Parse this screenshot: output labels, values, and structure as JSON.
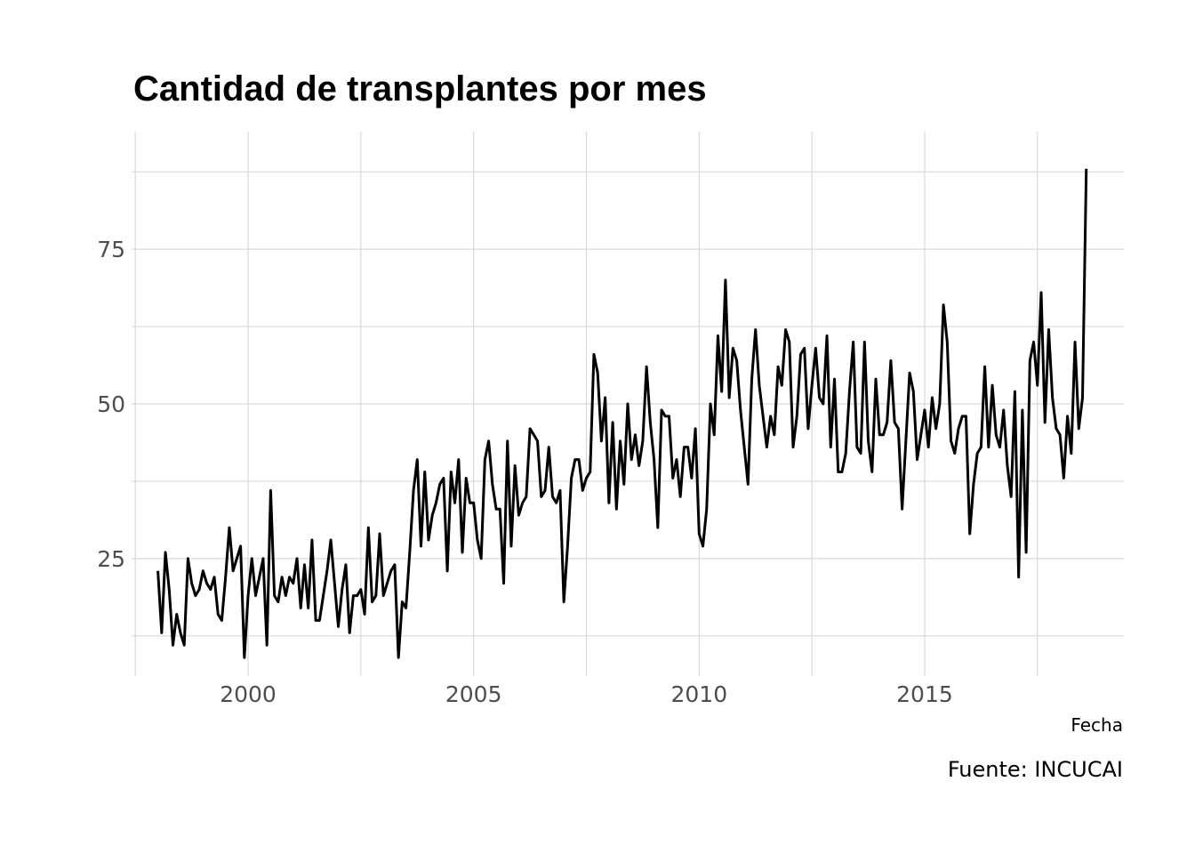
{
  "chart_data": {
    "type": "line",
    "title": "Cantidad de transplantes por mes",
    "xlabel": "Fecha",
    "ylabel": "",
    "caption": "Fuente: INCUCAI",
    "xlim": [
      "1997-06",
      "2019-06"
    ],
    "ylim": [
      6,
      94
    ],
    "x_ticks": [
      2000,
      2005,
      2010,
      2015
    ],
    "x_tick_labels": [
      "2000",
      "2005",
      "2010",
      "2015"
    ],
    "y_ticks": [
      25,
      50,
      75
    ],
    "y_tick_labels": [
      "25",
      "50",
      "75"
    ],
    "grid": true,
    "series_color": "#000000",
    "x_start": "1998-01",
    "x_step": "1 month",
    "values": [
      23,
      13,
      26,
      20,
      11,
      16,
      13,
      11,
      25,
      21,
      19,
      20,
      23,
      21,
      20,
      22,
      16,
      15,
      22,
      30,
      23,
      25,
      27,
      9,
      19,
      25,
      19,
      22,
      25,
      11,
      36,
      19,
      18,
      22,
      19,
      22,
      21,
      25,
      17,
      24,
      17,
      28,
      15,
      15,
      19,
      23,
      28,
      21,
      14,
      20,
      24,
      13,
      19,
      19,
      20,
      16,
      30,
      18,
      19,
      29,
      19,
      21,
      23,
      24,
      9,
      18,
      17,
      26,
      36,
      41,
      27,
      39,
      28,
      32,
      34,
      37,
      38,
      23,
      39,
      34,
      41,
      26,
      38,
      34,
      34,
      28,
      25,
      41,
      44,
      37,
      33,
      33,
      21,
      44,
      27,
      40,
      32,
      34,
      35,
      46,
      45,
      44,
      35,
      36,
      43,
      35,
      34,
      36,
      18,
      27,
      38,
      41,
      41,
      36,
      38,
      39,
      58,
      55,
      44,
      51,
      34,
      47,
      33,
      44,
      37,
      50,
      41,
      45,
      40,
      44,
      56,
      47,
      41,
      30,
      49,
      48,
      48,
      38,
      41,
      35,
      43,
      43,
      38,
      46,
      29,
      27,
      33,
      50,
      45,
      61,
      52,
      70,
      51,
      59,
      57,
      49,
      43,
      37,
      54,
      62,
      53,
      48,
      43,
      48,
      45,
      56,
      53,
      62,
      60,
      43,
      48,
      58,
      59,
      46,
      53,
      59,
      51,
      50,
      61,
      43,
      54,
      39,
      39,
      42,
      52,
      60,
      43,
      42,
      60,
      44,
      39,
      54,
      45,
      45,
      47,
      57,
      47,
      46,
      33,
      44,
      55,
      52,
      41,
      45,
      49,
      43,
      51,
      46,
      50,
      66,
      60,
      44,
      42,
      46,
      48,
      48,
      29,
      37,
      42,
      43,
      56,
      43,
      53,
      45,
      43,
      49,
      40,
      35,
      52,
      22,
      49,
      26,
      57,
      60,
      53,
      68,
      47,
      62,
      51,
      46,
      45,
      38,
      48,
      42,
      60,
      46,
      51,
      88
    ]
  }
}
